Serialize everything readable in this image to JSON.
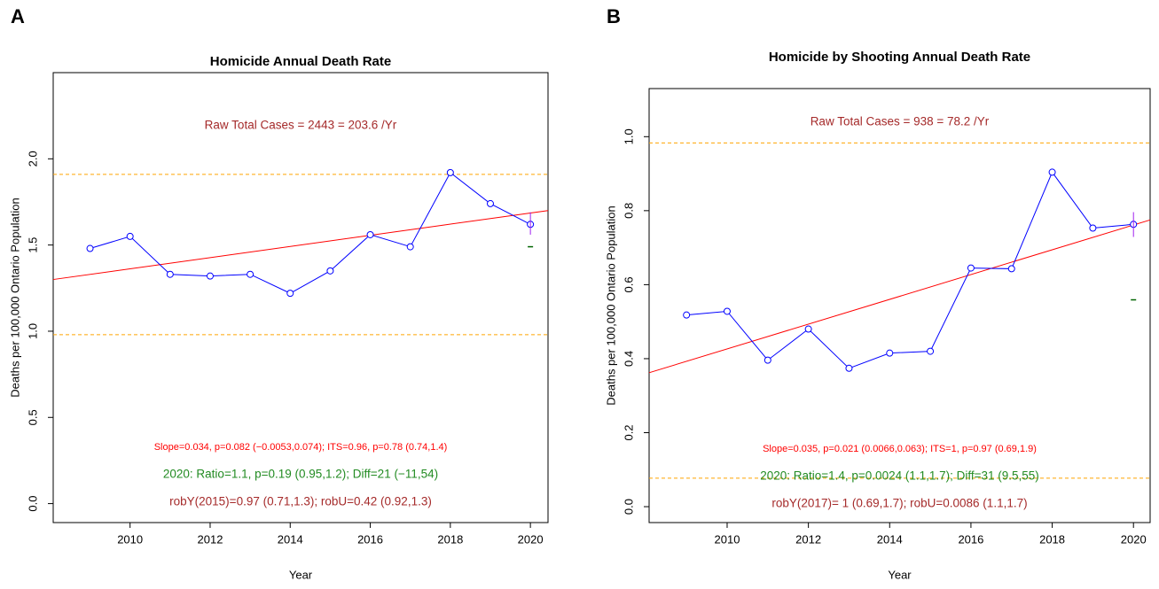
{
  "chart_data": [
    {
      "type": "line",
      "panel_label": "A",
      "title": "Homicide Annual Death Rate",
      "x_label": "Year",
      "y_label": "Deaths per 100,000 Ontario Population",
      "x": [
        2009,
        2010,
        2011,
        2012,
        2013,
        2014,
        2015,
        2016,
        2017,
        2018,
        2019,
        2020
      ],
      "values": [
        1.48,
        1.55,
        1.33,
        1.32,
        1.33,
        1.22,
        1.35,
        1.56,
        1.49,
        1.92,
        1.74,
        1.62
      ],
      "color": "#0000ff",
      "trend": {
        "x": [
          2008.08,
          2020.44
        ],
        "y": [
          1.3,
          1.7
        ],
        "color": "#ff0000"
      },
      "reference_lines": [
        1.91,
        0.98
      ],
      "reference_color": "#ffa500",
      "estimate_2020": 1.49,
      "estimate_color": "#006400",
      "error_bar": [
        1.56,
        1.69
      ],
      "error_color": "#a020f0",
      "xlim": [
        2008.08,
        2020.44
      ],
      "ylim": [
        -0.11,
        2.5
      ],
      "xticks": [
        2010,
        2012,
        2014,
        2016,
        2018,
        2020
      ],
      "yticks": [
        {
          "value": 0,
          "label": "0.0"
        },
        0.5,
        {
          "value": 1,
          "label": "1.0"
        },
        1.5,
        {
          "value": 2,
          "label": "2.0"
        }
      ],
      "annotations": [
        {
          "text": "Raw Total Cases = 2443 = 203.6 /Yr",
          "color": "#a52a2a"
        },
        {
          "text": "Slope=0.034, p=0.082 (−0.0053,0.074);  ITS=0.96, p=0.78 (0.74,1.4)",
          "color": "#ff0000"
        },
        {
          "text": "2020:  Ratio=1.1, p=0.19 (0.95,1.2);  Diff=21 (−11,54)",
          "color": "#228b22"
        },
        {
          "text": "robY(2015)=0.97 (0.71,1.3); robU=0.42 (0.92,1.3)",
          "color": "#a52a2a"
        }
      ]
    },
    {
      "type": "line",
      "panel_label": "B",
      "title": "Homicide by Shooting Annual Death Rate",
      "x_label": "Year",
      "y_label": "Deaths per 100,000 Ontario Population",
      "x": [
        2009,
        2010,
        2011,
        2012,
        2013,
        2014,
        2015,
        2016,
        2017,
        2018,
        2019,
        2020
      ],
      "values": [
        0.518,
        0.528,
        0.396,
        0.48,
        0.374,
        0.415,
        0.42,
        0.645,
        0.643,
        0.904,
        0.753,
        0.763
      ],
      "color": "#0000ff",
      "trend": {
        "x": [
          2008.08,
          2020.41
        ],
        "y": [
          0.362,
          0.775
        ],
        "color": "#ff0000"
      },
      "reference_lines": [
        0.983,
        0.077
      ],
      "reference_color": "#ffa500",
      "estimate_2020": 0.559,
      "estimate_color": "#006400",
      "error_bar": [
        0.729,
        0.796
      ],
      "error_color": "#a020f0",
      "xlim": [
        2008.08,
        2020.41
      ],
      "ylim": [
        -0.043,
        1.13
      ],
      "xticks": [
        2010,
        2012,
        2014,
        2016,
        2018,
        2020
      ],
      "yticks": [
        {
          "value": 0,
          "label": "0.0"
        },
        0.2,
        0.4,
        0.6,
        0.8,
        {
          "value": 1,
          "label": "1.0"
        }
      ],
      "annotations": [
        {
          "text": "Raw Total Cases = 938 = 78.2 /Yr",
          "color": "#a52a2a"
        },
        {
          "text": "Slope=0.035, p=0.021 (0.0066,0.063);  ITS=1, p=0.97 (0.69,1.9)",
          "color": "#ff0000"
        },
        {
          "text": "2020:  Ratio=1.4, p=0.0024 (1.1,1.7);  Diff=31 (9.5,55)",
          "color": "#228b22"
        },
        {
          "text": "robY(2017)=  1 (0.69,1.7); robU=0.0086 (1.1,1.7)",
          "color": "#a52a2a"
        }
      ]
    }
  ]
}
